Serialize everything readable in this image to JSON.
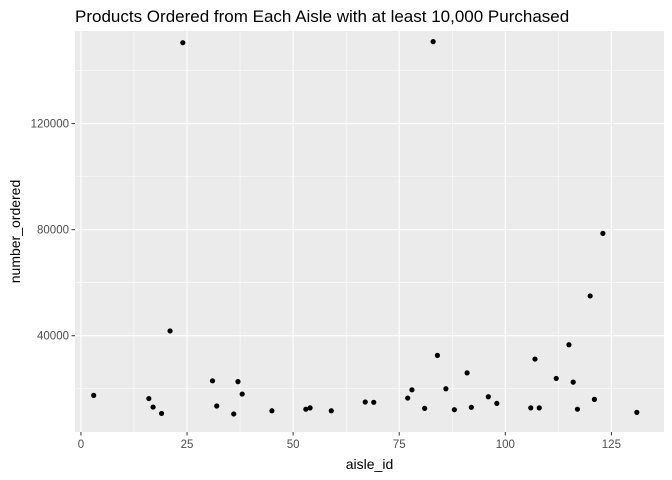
{
  "chart_data": {
    "type": "scatter",
    "title": "Products Ordered from Each Aisle with at least 10,000 Purchased",
    "xlabel": "aisle_id",
    "ylabel": "number_ordered",
    "xlim": [
      -1.4,
      137.4
    ],
    "ylim": [
      3700,
      154900
    ],
    "x_ticks": [
      0,
      25,
      50,
      75,
      100,
      125
    ],
    "x_tick_labels": [
      "0",
      "25",
      "50",
      "75",
      "100",
      "125"
    ],
    "y_ticks": [
      40000,
      80000,
      120000
    ],
    "y_tick_labels": [
      "40000",
      "80000",
      "120000"
    ],
    "grid": true,
    "panel_background": "#ebebeb",
    "grid_color": "#ffffff",
    "point_color": "#000000",
    "points": [
      {
        "x": 3,
        "y": 17500
      },
      {
        "x": 16,
        "y": 16300
      },
      {
        "x": 17,
        "y": 13100
      },
      {
        "x": 19,
        "y": 10700
      },
      {
        "x": 21,
        "y": 41800
      },
      {
        "x": 24,
        "y": 150500
      },
      {
        "x": 31,
        "y": 23000
      },
      {
        "x": 32,
        "y": 13500
      },
      {
        "x": 36,
        "y": 10500
      },
      {
        "x": 37,
        "y": 22700
      },
      {
        "x": 38,
        "y": 18000
      },
      {
        "x": 45,
        "y": 11700
      },
      {
        "x": 53,
        "y": 12300
      },
      {
        "x": 54,
        "y": 12800
      },
      {
        "x": 59,
        "y": 11700
      },
      {
        "x": 67,
        "y": 15000
      },
      {
        "x": 69,
        "y": 14900
      },
      {
        "x": 77,
        "y": 16500
      },
      {
        "x": 78,
        "y": 19600
      },
      {
        "x": 81,
        "y": 12600
      },
      {
        "x": 83,
        "y": 150900
      },
      {
        "x": 84,
        "y": 32600
      },
      {
        "x": 86,
        "y": 20000
      },
      {
        "x": 88,
        "y": 12100
      },
      {
        "x": 91,
        "y": 26000
      },
      {
        "x": 92,
        "y": 13000
      },
      {
        "x": 96,
        "y": 17000
      },
      {
        "x": 98,
        "y": 14500
      },
      {
        "x": 106,
        "y": 12800
      },
      {
        "x": 107,
        "y": 31200
      },
      {
        "x": 108,
        "y": 12800
      },
      {
        "x": 112,
        "y": 23900
      },
      {
        "x": 115,
        "y": 36600
      },
      {
        "x": 116,
        "y": 22500
      },
      {
        "x": 117,
        "y": 12300
      },
      {
        "x": 120,
        "y": 55000
      },
      {
        "x": 121,
        "y": 16000
      },
      {
        "x": 123,
        "y": 78600
      },
      {
        "x": 131,
        "y": 11100
      }
    ]
  }
}
